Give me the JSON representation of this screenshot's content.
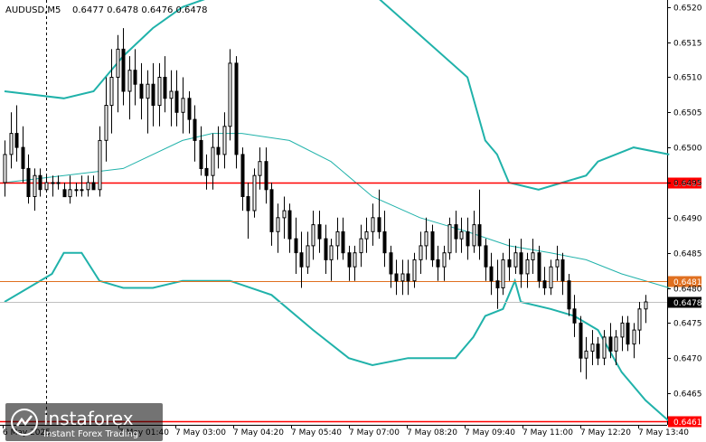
{
  "header": {
    "symbol": "AUDUSD,M5",
    "ohlc": "0.6477 0.6478 0.6476 0.6478"
  },
  "watermark": {
    "brand": "instaforex",
    "tagline": "Instant Forex Trading"
  },
  "chart_data": {
    "type": "candlestick",
    "y_ticks": [
      "0.6520",
      "0.6515",
      "0.6510",
      "0.6505",
      "0.6500",
      "0.6495",
      "0.6490",
      "0.6485",
      "0.6480",
      "0.6475",
      "0.6470",
      "0.6465"
    ],
    "x_labels": [
      "6 May 2025",
      "7 May 01:40",
      "7 May 03:00",
      "7 May 04:20",
      "7 May 05:40",
      "7 May 07:00",
      "7 May 08:20",
      "7 May 09:40",
      "7 May 11:00",
      "7 May 12:20",
      "7 May 13:40"
    ],
    "ylim": [
      0.64605,
      0.6521
    ],
    "levels": [
      {
        "name": "resistance-level",
        "value": 0.6495,
        "label": "0.6495",
        "color": "#ff0000"
      },
      {
        "name": "pivot-level",
        "value": 0.6481,
        "label": "0.6481",
        "color": "#e07020"
      },
      {
        "name": "current-price",
        "value": 0.6478,
        "label": "0.6478",
        "color": "#000000"
      },
      {
        "name": "support-level",
        "value": 0.6461,
        "label": "0.6461",
        "color": "#ff0000"
      }
    ],
    "candles": [
      [
        0.6495,
        0.6501,
        0.6493,
        0.6499
      ],
      [
        0.6499,
        0.6505,
        0.6497,
        0.6502
      ],
      [
        0.6502,
        0.6506,
        0.6498,
        0.65
      ],
      [
        0.65,
        0.6503,
        0.6495,
        0.6497
      ],
      [
        0.6497,
        0.6499,
        0.6492,
        0.6493
      ],
      [
        0.6493,
        0.6497,
        0.6491,
        0.6496
      ],
      [
        0.6496,
        0.6497,
        0.6493,
        0.6494
      ],
      [
        0.6494,
        0.6496,
        0.6494,
        0.6495
      ],
      [
        0.6495,
        0.6496,
        0.6493,
        0.6495
      ],
      [
        0.6495,
        0.6496,
        0.6494,
        0.6495
      ],
      [
        0.6494,
        0.6495,
        0.6493,
        0.6493
      ],
      [
        0.6493,
        0.6496,
        0.6492,
        0.6494
      ],
      [
        0.6494,
        0.6495,
        0.6493,
        0.6494
      ],
      [
        0.6494,
        0.6496,
        0.6493,
        0.6494
      ],
      [
        0.6494,
        0.6496,
        0.6493,
        0.6495
      ],
      [
        0.6495,
        0.6496,
        0.6494,
        0.6494
      ],
      [
        0.6494,
        0.6503,
        0.6493,
        0.6501
      ],
      [
        0.6501,
        0.651,
        0.6498,
        0.6506
      ],
      [
        0.6506,
        0.6514,
        0.6502,
        0.651
      ],
      [
        0.651,
        0.6516,
        0.6505,
        0.6514
      ],
      [
        0.6514,
        0.6517,
        0.6506,
        0.6508
      ],
      [
        0.6508,
        0.6513,
        0.6504,
        0.6511
      ],
      [
        0.6511,
        0.6514,
        0.6506,
        0.6509
      ],
      [
        0.6509,
        0.6512,
        0.6504,
        0.6507
      ],
      [
        0.6507,
        0.6511,
        0.6502,
        0.6509
      ],
      [
        0.6509,
        0.6512,
        0.6503,
        0.6506
      ],
      [
        0.6506,
        0.6512,
        0.6503,
        0.651
      ],
      [
        0.651,
        0.6513,
        0.6505,
        0.6507
      ],
      [
        0.6507,
        0.6511,
        0.6503,
        0.6508
      ],
      [
        0.6508,
        0.6511,
        0.6503,
        0.6505
      ],
      [
        0.6505,
        0.651,
        0.6502,
        0.6507
      ],
      [
        0.6507,
        0.6508,
        0.6502,
        0.6504
      ],
      [
        0.6504,
        0.6506,
        0.6498,
        0.6501
      ],
      [
        0.6501,
        0.6503,
        0.6496,
        0.6497
      ],
      [
        0.6497,
        0.6499,
        0.6494,
        0.6496
      ],
      [
        0.6496,
        0.6502,
        0.6494,
        0.65
      ],
      [
        0.65,
        0.6503,
        0.6497,
        0.6499
      ],
      [
        0.6499,
        0.6505,
        0.6497,
        0.6503
      ],
      [
        0.6503,
        0.6514,
        0.6501,
        0.6512
      ],
      [
        0.6512,
        0.6513,
        0.6497,
        0.6499
      ],
      [
        0.6499,
        0.65,
        0.6491,
        0.6493
      ],
      [
        0.6493,
        0.6495,
        0.6487,
        0.6491
      ],
      [
        0.6491,
        0.6497,
        0.649,
        0.6496
      ],
      [
        0.6496,
        0.65,
        0.6494,
        0.6498
      ],
      [
        0.6498,
        0.65,
        0.6492,
        0.6494
      ],
      [
        0.6494,
        0.6495,
        0.6486,
        0.6488
      ],
      [
        0.6488,
        0.6492,
        0.6485,
        0.649
      ],
      [
        0.649,
        0.6493,
        0.6487,
        0.6491
      ],
      [
        0.6491,
        0.6492,
        0.6485,
        0.6487
      ],
      [
        0.6487,
        0.649,
        0.6482,
        0.6485
      ],
      [
        0.6485,
        0.6488,
        0.648,
        0.6483
      ],
      [
        0.6483,
        0.6488,
        0.6482,
        0.6486
      ],
      [
        0.6486,
        0.6491,
        0.6484,
        0.6489
      ],
      [
        0.6489,
        0.6491,
        0.6485,
        0.6487
      ],
      [
        0.6487,
        0.6489,
        0.6482,
        0.6484
      ],
      [
        0.6484,
        0.6487,
        0.6481,
        0.6486
      ],
      [
        0.6486,
        0.649,
        0.6484,
        0.6488
      ],
      [
        0.6488,
        0.649,
        0.6484,
        0.6485
      ],
      [
        0.6485,
        0.6486,
        0.6481,
        0.6483
      ],
      [
        0.6483,
        0.6486,
        0.6481,
        0.6485
      ],
      [
        0.6485,
        0.6489,
        0.6483,
        0.6487
      ],
      [
        0.6487,
        0.649,
        0.6485,
        0.6488
      ],
      [
        0.6488,
        0.6492,
        0.6486,
        0.649
      ],
      [
        0.649,
        0.6494,
        0.6487,
        0.6488
      ],
      [
        0.6488,
        0.6491,
        0.6483,
        0.6485
      ],
      [
        0.6485,
        0.6486,
        0.648,
        0.6482
      ],
      [
        0.6482,
        0.6484,
        0.6479,
        0.6481
      ],
      [
        0.6481,
        0.6484,
        0.6479,
        0.6482
      ],
      [
        0.6482,
        0.6484,
        0.6479,
        0.6481
      ],
      [
        0.6481,
        0.6485,
        0.648,
        0.6484
      ],
      [
        0.6484,
        0.6488,
        0.6482,
        0.6486
      ],
      [
        0.6486,
        0.649,
        0.6484,
        0.6488
      ],
      [
        0.6488,
        0.6489,
        0.6483,
        0.6484
      ],
      [
        0.6484,
        0.6486,
        0.6481,
        0.6483
      ],
      [
        0.6483,
        0.6486,
        0.6481,
        0.6485
      ],
      [
        0.6485,
        0.649,
        0.6484,
        0.6489
      ],
      [
        0.6489,
        0.6491,
        0.6485,
        0.6487
      ],
      [
        0.6487,
        0.649,
        0.6485,
        0.6488
      ],
      [
        0.6488,
        0.649,
        0.6484,
        0.6486
      ],
      [
        0.6486,
        0.6491,
        0.6485,
        0.6489
      ],
      [
        0.6489,
        0.6494,
        0.6484,
        0.6486
      ],
      [
        0.6486,
        0.6487,
        0.6481,
        0.6483
      ],
      [
        0.6483,
        0.6485,
        0.6479,
        0.6481
      ],
      [
        0.6481,
        0.6484,
        0.6477,
        0.648
      ],
      [
        0.648,
        0.6485,
        0.6479,
        0.6484
      ],
      [
        0.6484,
        0.6487,
        0.6481,
        0.6483
      ],
      [
        0.6483,
        0.6486,
        0.6482,
        0.6485
      ],
      [
        0.6485,
        0.6487,
        0.648,
        0.6482
      ],
      [
        0.6482,
        0.6485,
        0.648,
        0.6484
      ],
      [
        0.6484,
        0.6487,
        0.6482,
        0.6485
      ],
      [
        0.6485,
        0.6486,
        0.648,
        0.6481
      ],
      [
        0.6481,
        0.6483,
        0.6479,
        0.648
      ],
      [
        0.648,
        0.6484,
        0.6479,
        0.6483
      ],
      [
        0.6483,
        0.6486,
        0.6481,
        0.6484
      ],
      [
        0.6484,
        0.6485,
        0.6479,
        0.6481
      ],
      [
        0.6481,
        0.6482,
        0.6476,
        0.6477
      ],
      [
        0.6477,
        0.6479,
        0.6473,
        0.6475
      ],
      [
        0.6475,
        0.6476,
        0.6468,
        0.647
      ],
      [
        0.647,
        0.6473,
        0.6467,
        0.6471
      ],
      [
        0.6471,
        0.6474,
        0.6469,
        0.6472
      ],
      [
        0.6472,
        0.6473,
        0.6469,
        0.647
      ],
      [
        0.647,
        0.6474,
        0.6469,
        0.6473
      ],
      [
        0.6473,
        0.6475,
        0.647,
        0.6471
      ],
      [
        0.6471,
        0.6474,
        0.6469,
        0.6473
      ],
      [
        0.6473,
        0.6476,
        0.6471,
        0.6475
      ],
      [
        0.6475,
        0.6476,
        0.6471,
        0.6472
      ],
      [
        0.6472,
        0.6475,
        0.647,
        0.6474
      ],
      [
        0.6474,
        0.6478,
        0.6472,
        0.6477
      ],
      [
        0.6477,
        0.6479,
        0.6475,
        0.6478
      ]
    ],
    "bollinger": {
      "color": "#20b2aa",
      "upper": [
        [
          0,
          0.6508
        ],
        [
          10,
          0.6507
        ],
        [
          15,
          0.6508
        ],
        [
          20,
          0.6513
        ],
        [
          25,
          0.6517
        ],
        [
          30,
          0.652
        ],
        [
          40,
          0.6523
        ],
        [
          55,
          0.6525
        ],
        [
          62,
          0.6522
        ],
        [
          70,
          0.6516
        ],
        [
          78,
          0.651
        ],
        [
          81,
          0.6501
        ],
        [
          83,
          0.6499
        ],
        [
          85,
          0.6495
        ],
        [
          90,
          0.6494
        ],
        [
          94,
          0.6495
        ],
        [
          98,
          0.6496
        ],
        [
          100,
          0.6498
        ],
        [
          106,
          0.65
        ],
        [
          112,
          0.6499
        ]
      ],
      "middle": [
        [
          0,
          0.6495
        ],
        [
          10,
          0.6496
        ],
        [
          20,
          0.6497
        ],
        [
          30,
          0.6501
        ],
        [
          35,
          0.6502
        ],
        [
          40,
          0.6502
        ],
        [
          48,
          0.6501
        ],
        [
          55,
          0.6498
        ],
        [
          62,
          0.6493
        ],
        [
          70,
          0.649
        ],
        [
          78,
          0.6488
        ],
        [
          85,
          0.6486
        ],
        [
          92,
          0.6485
        ],
        [
          98,
          0.6484
        ],
        [
          104,
          0.6482
        ],
        [
          112,
          0.648
        ]
      ],
      "lower": [
        [
          0,
          0.6478
        ],
        [
          4,
          0.648
        ],
        [
          8,
          0.6482
        ],
        [
          10,
          0.6485
        ],
        [
          13,
          0.6485
        ],
        [
          16,
          0.6481
        ],
        [
          20,
          0.648
        ],
        [
          25,
          0.648
        ],
        [
          30,
          0.6481
        ],
        [
          38,
          0.6481
        ],
        [
          45,
          0.6479
        ],
        [
          52,
          0.6474
        ],
        [
          58,
          0.647
        ],
        [
          62,
          0.6469
        ],
        [
          68,
          0.647
        ],
        [
          76,
          0.647
        ],
        [
          79,
          0.6473
        ],
        [
          81,
          0.6476
        ],
        [
          84,
          0.6477
        ],
        [
          86,
          0.6481
        ],
        [
          87,
          0.6478
        ],
        [
          92,
          0.6477
        ],
        [
          96,
          0.6476
        ],
        [
          100,
          0.6474
        ],
        [
          104,
          0.6468
        ],
        [
          108,
          0.6464
        ],
        [
          112,
          0.6461
        ]
      ]
    }
  }
}
